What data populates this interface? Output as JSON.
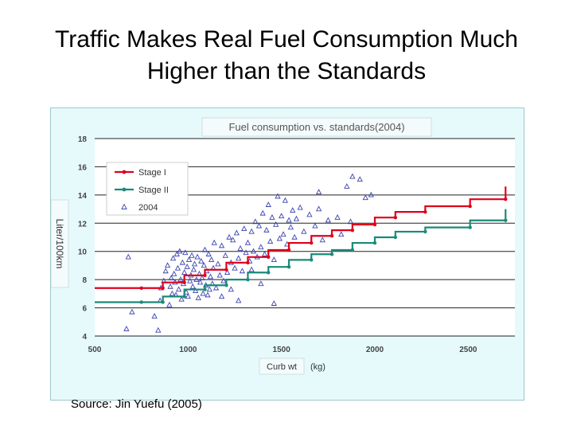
{
  "slide": {
    "title_line1": "Traffic Makes Real Fuel Consumption Much",
    "title_line2": "Higher than the Standards",
    "source": "Source: Jin Yuefu (2005)"
  },
  "chart_data": {
    "type": "scatter",
    "title": "Fuel consumption vs. standards(2004)",
    "xlabel": "Curb wt",
    "xunit": "(kg)",
    "ylabel": "Liter/100km",
    "xlim": [
      500,
      2750
    ],
    "ylim": [
      4,
      18
    ],
    "xticks": [
      500,
      1000,
      1500,
      2000,
      2500
    ],
    "yticks": [
      4,
      6,
      8,
      10,
      12,
      14,
      16,
      18
    ],
    "grid": "horizontal",
    "legend_position": "top-left",
    "colors": {
      "stage1": "#e0001a",
      "stage2": "#1a8a78",
      "points": "#3a44b0",
      "panel": "#e6fafc",
      "plot": "#ffffff"
    },
    "series": [
      {
        "name": "Stage I",
        "kind": "step",
        "x": [
          500,
          750,
          865,
          980,
          1090,
          1205,
          1320,
          1430,
          1540,
          1660,
          1770,
          1880,
          2000,
          2110,
          2270,
          2510,
          2700
        ],
        "y": [
          7.4,
          7.4,
          7.8,
          8.3,
          8.7,
          9.2,
          9.6,
          10.1,
          10.6,
          11.1,
          11.5,
          11.9,
          12.4,
          12.8,
          13.2,
          13.7,
          14.6
        ]
      },
      {
        "name": "Stage II",
        "kind": "step",
        "x": [
          500,
          750,
          865,
          980,
          1090,
          1205,
          1320,
          1430,
          1540,
          1660,
          1770,
          1880,
          2000,
          2110,
          2270,
          2510,
          2700
        ],
        "y": [
          6.4,
          6.4,
          6.8,
          7.3,
          7.6,
          8.0,
          8.5,
          8.9,
          9.4,
          9.8,
          10.1,
          10.6,
          11.0,
          11.4,
          11.7,
          12.2,
          13.0
        ]
      },
      {
        "name": "2004",
        "kind": "scatter",
        "points": [
          [
            670,
            4.5
          ],
          [
            680,
            9.6
          ],
          [
            700,
            5.7
          ],
          [
            820,
            5.4
          ],
          [
            840,
            4.4
          ],
          [
            850,
            6.5
          ],
          [
            855,
            7.4
          ],
          [
            870,
            7.9
          ],
          [
            880,
            8.6
          ],
          [
            890,
            9.0
          ],
          [
            900,
            6.2
          ],
          [
            905,
            7.5
          ],
          [
            910,
            8.1
          ],
          [
            915,
            7.0
          ],
          [
            920,
            9.5
          ],
          [
            925,
            8.4
          ],
          [
            930,
            7.8
          ],
          [
            935,
            6.9
          ],
          [
            940,
            9.8
          ],
          [
            945,
            8.8
          ],
          [
            950,
            7.3
          ],
          [
            955,
            10.0
          ],
          [
            960,
            8.0
          ],
          [
            965,
            6.6
          ],
          [
            970,
            9.2
          ],
          [
            975,
            7.7
          ],
          [
            980,
            8.5
          ],
          [
            985,
            9.9
          ],
          [
            990,
            7.1
          ],
          [
            995,
            8.9
          ],
          [
            1000,
            6.8
          ],
          [
            1005,
            9.4
          ],
          [
            1010,
            7.9
          ],
          [
            1015,
            8.3
          ],
          [
            1020,
            9.7
          ],
          [
            1025,
            7.5
          ],
          [
            1030,
            8.7
          ],
          [
            1035,
            9.1
          ],
          [
            1040,
            7.2
          ],
          [
            1045,
            8.0
          ],
          [
            1050,
            9.6
          ],
          [
            1055,
            6.7
          ],
          [
            1060,
            8.4
          ],
          [
            1065,
            7.8
          ],
          [
            1070,
            9.3
          ],
          [
            1075,
            8.1
          ],
          [
            1080,
            7.0
          ],
          [
            1085,
            9.0
          ],
          [
            1090,
            10.1
          ],
          [
            1095,
            7.6
          ],
          [
            1100,
            8.6
          ],
          [
            1105,
            6.9
          ],
          [
            1110,
            9.8
          ],
          [
            1115,
            7.3
          ],
          [
            1120,
            8.2
          ],
          [
            1125,
            9.4
          ],
          [
            1130,
            7.7
          ],
          [
            1135,
            8.8
          ],
          [
            1140,
            10.6
          ],
          [
            1150,
            7.4
          ],
          [
            1160,
            9.1
          ],
          [
            1170,
            8.3
          ],
          [
            1180,
            10.4
          ],
          [
            1190,
            7.9
          ],
          [
            1200,
            9.7
          ],
          [
            1210,
            8.5
          ],
          [
            1220,
            11.0
          ],
          [
            1230,
            9.2
          ],
          [
            1240,
            10.8
          ],
          [
            1250,
            8.8
          ],
          [
            1260,
            11.3
          ],
          [
            1270,
            9.5
          ],
          [
            1280,
            10.2
          ],
          [
            1290,
            8.6
          ],
          [
            1300,
            11.6
          ],
          [
            1310,
            9.9
          ],
          [
            1320,
            10.6
          ],
          [
            1330,
            9.3
          ],
          [
            1340,
            11.4
          ],
          [
            1350,
            10.0
          ],
          [
            1360,
            12.1
          ],
          [
            1370,
            9.6
          ],
          [
            1380,
            11.8
          ],
          [
            1390,
            10.3
          ],
          [
            1400,
            12.7
          ],
          [
            1410,
            9.8
          ],
          [
            1420,
            11.5
          ],
          [
            1430,
            13.3
          ],
          [
            1440,
            10.7
          ],
          [
            1450,
            12.4
          ],
          [
            1460,
            9.4
          ],
          [
            1470,
            11.9
          ],
          [
            1480,
            13.9
          ],
          [
            1490,
            10.9
          ],
          [
            1500,
            12.5
          ],
          [
            1510,
            11.2
          ],
          [
            1520,
            13.6
          ],
          [
            1530,
            10.5
          ],
          [
            1540,
            12.2
          ],
          [
            1550,
            11.7
          ],
          [
            1560,
            12.9
          ],
          [
            1570,
            11.0
          ],
          [
            1580,
            12.3
          ],
          [
            1600,
            13.1
          ],
          [
            1620,
            11.4
          ],
          [
            1650,
            12.6
          ],
          [
            1680,
            11.8
          ],
          [
            1700,
            13.0
          ],
          [
            1720,
            10.8
          ],
          [
            1750,
            12.2
          ],
          [
            1700,
            14.2
          ],
          [
            1800,
            12.4
          ],
          [
            1820,
            11.2
          ],
          [
            1850,
            14.6
          ],
          [
            1870,
            12.1
          ],
          [
            1880,
            15.3
          ],
          [
            1920,
            15.1
          ],
          [
            1950,
            13.8
          ],
          [
            1980,
            14.0
          ],
          [
            1460,
            6.3
          ],
          [
            1390,
            7.7
          ],
          [
            1340,
            8.7
          ],
          [
            1270,
            6.5
          ],
          [
            1230,
            7.3
          ],
          [
            1180,
            6.8
          ]
        ]
      }
    ]
  }
}
